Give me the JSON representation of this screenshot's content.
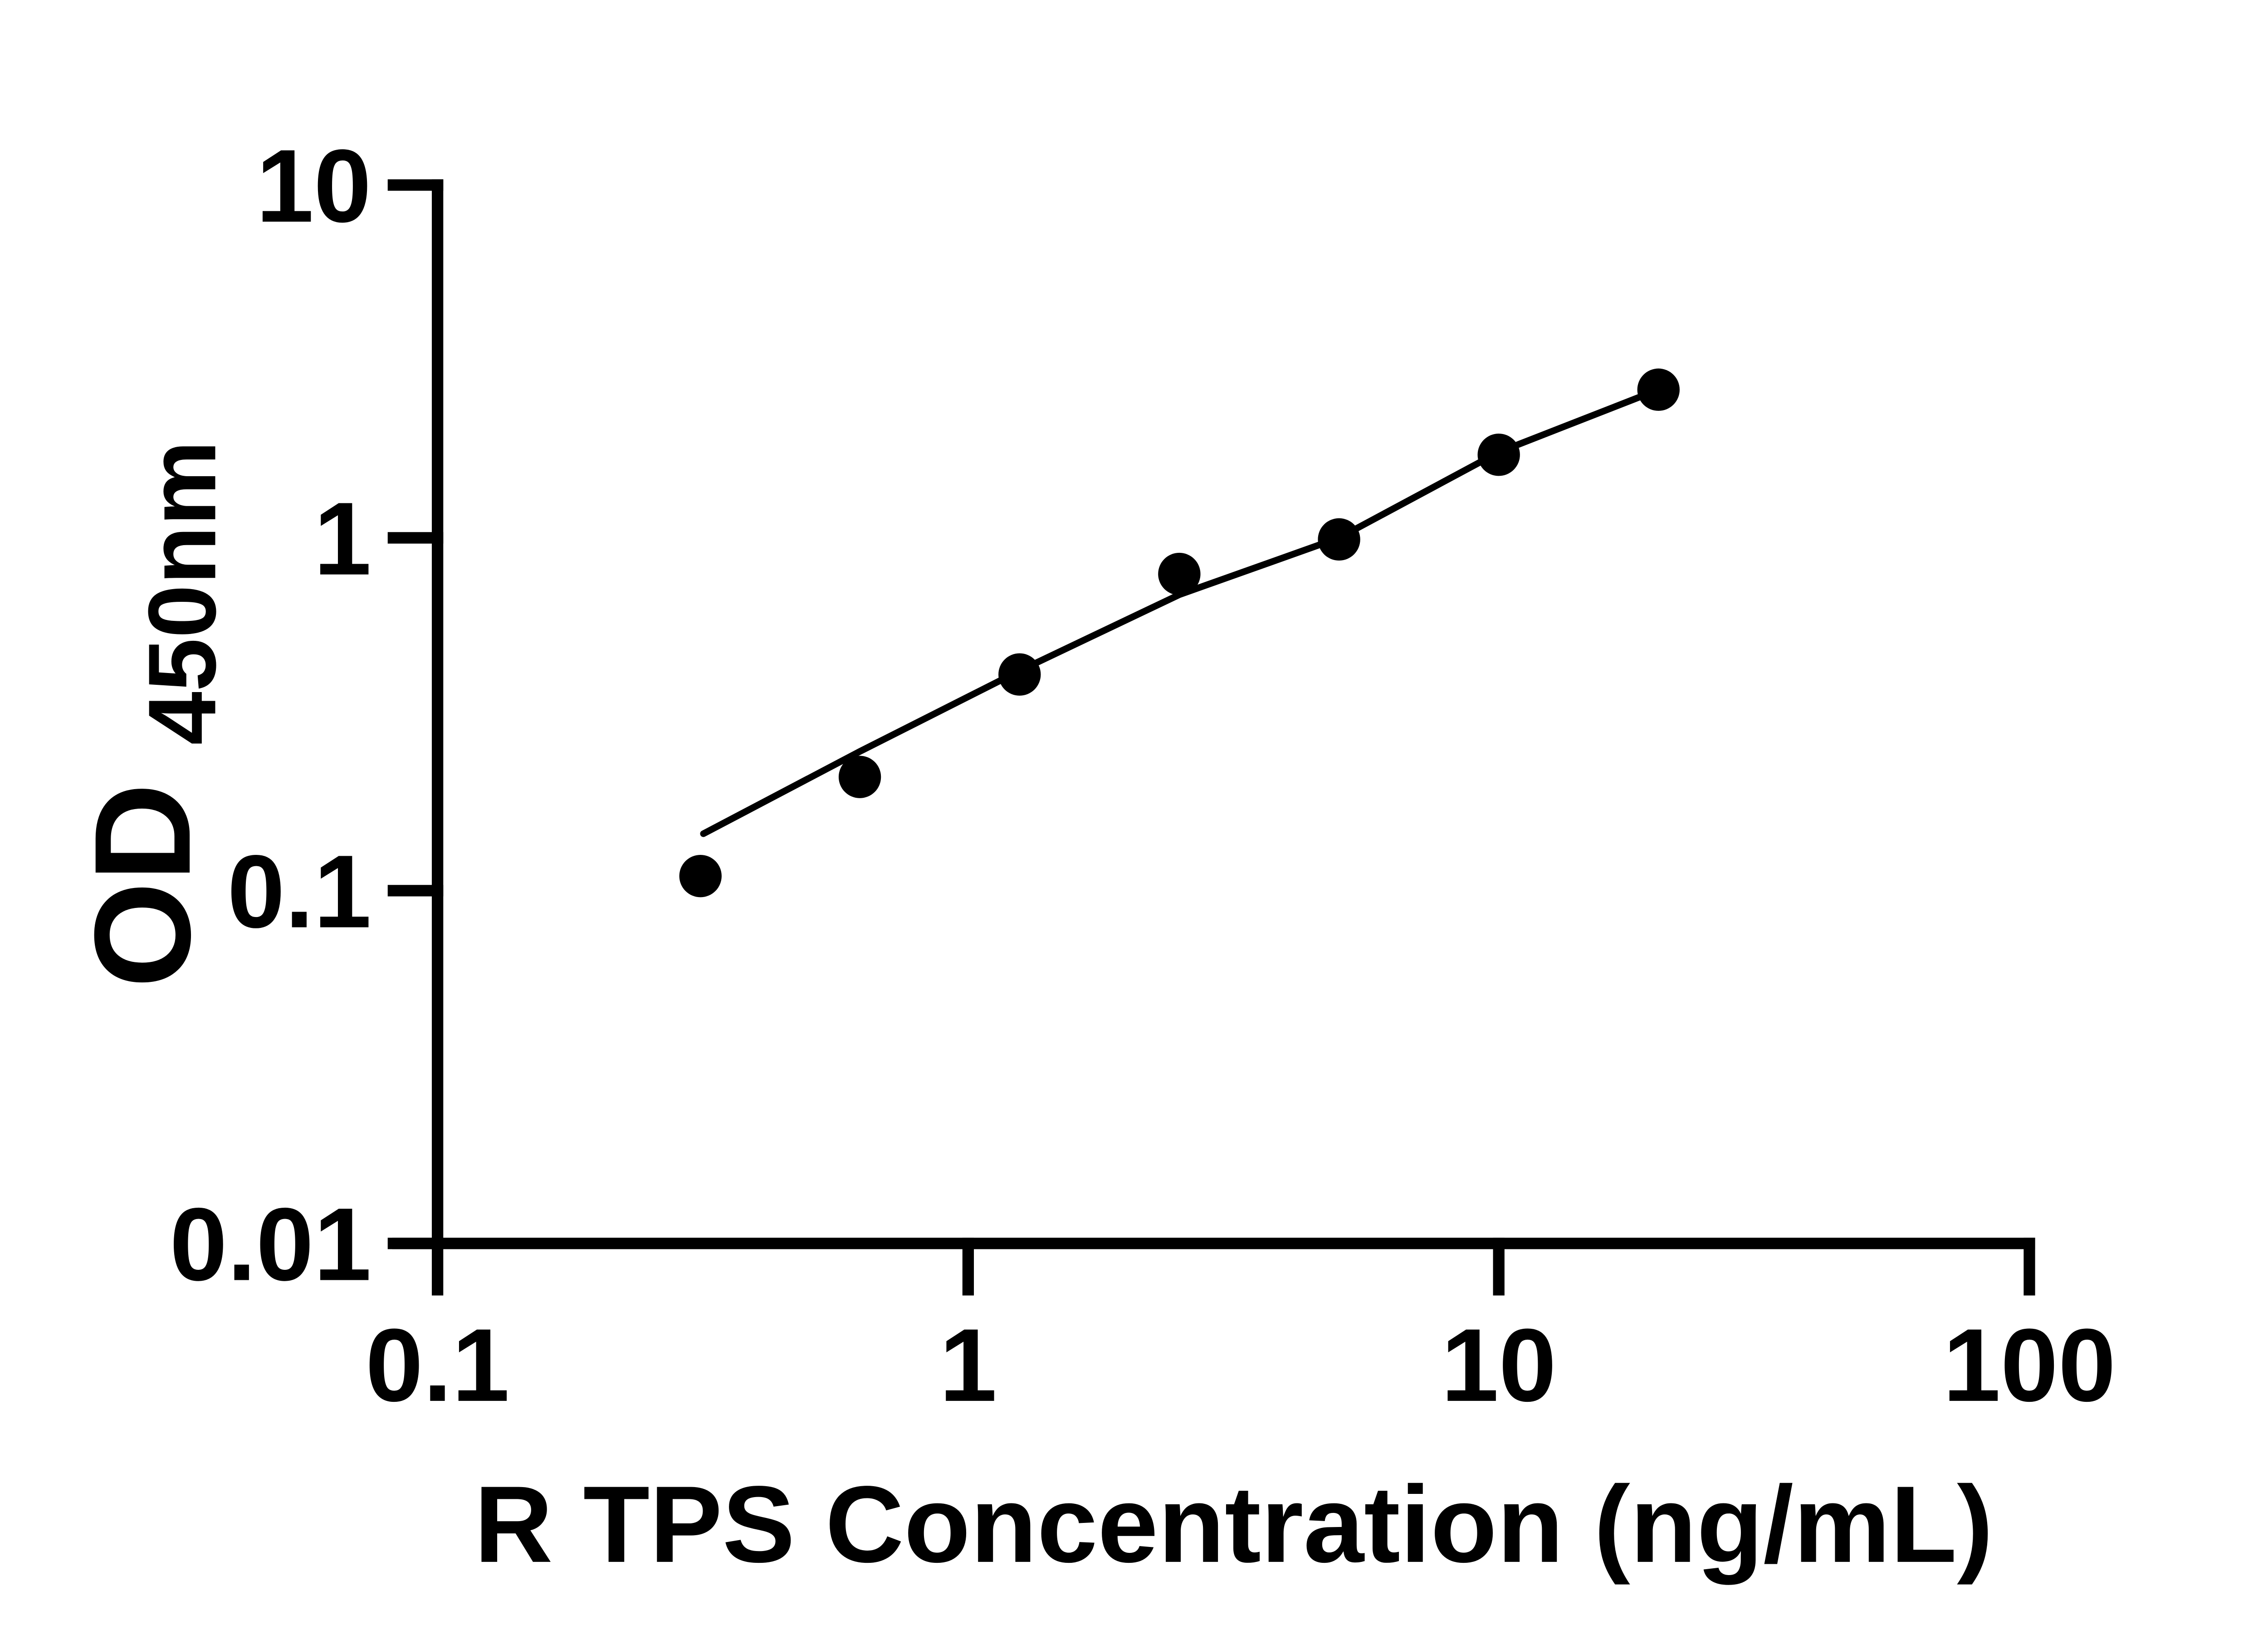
{
  "chart_data": {
    "type": "scatter",
    "title": "",
    "xlabel": "R TPS Concentration (ng/mL)",
    "ylabel_main": "OD",
    "ylabel_subscript": "450nm",
    "x_scale": "log10",
    "y_scale": "log10",
    "xlim": [
      0.1,
      100
    ],
    "ylim": [
      0.01,
      10
    ],
    "grid": false,
    "legend": false,
    "x_ticks": [
      {
        "value": 0.1,
        "label": "0.1"
      },
      {
        "value": 1,
        "label": "1"
      },
      {
        "value": 10,
        "label": "10"
      },
      {
        "value": 100,
        "label": "100"
      }
    ],
    "y_ticks": [
      {
        "value": 10,
        "label": "10"
      },
      {
        "value": 1,
        "label": "1"
      },
      {
        "value": 0.1,
        "label": "0.1"
      },
      {
        "value": 0.01,
        "label": "0.01"
      }
    ],
    "series": [
      {
        "name": "standard-points",
        "type": "scatter",
        "marker": "filled-circle",
        "color": "#000000",
        "points": [
          {
            "x": 0.313,
            "y": 0.11
          },
          {
            "x": 0.625,
            "y": 0.21
          },
          {
            "x": 1.25,
            "y": 0.41
          },
          {
            "x": 2.5,
            "y": 0.79
          },
          {
            "x": 5,
            "y": 0.99
          },
          {
            "x": 10,
            "y": 1.72
          },
          {
            "x": 20,
            "y": 2.63
          }
        ]
      },
      {
        "name": "fit-line",
        "type": "line",
        "color": "#000000",
        "points": [
          {
            "x": 0.317,
            "y": 0.145
          },
          {
            "x": 0.625,
            "y": 0.248
          },
          {
            "x": 1.25,
            "y": 0.42
          },
          {
            "x": 2.5,
            "y": 0.69
          },
          {
            "x": 5,
            "y": 1.0
          },
          {
            "x": 10,
            "y": 1.75
          },
          {
            "x": 20,
            "y": 2.63
          }
        ]
      }
    ]
  },
  "colors": {
    "background": "#ffffff",
    "axis": "#000000",
    "marker": "#000000",
    "line": "#000000",
    "text": "#000000"
  }
}
